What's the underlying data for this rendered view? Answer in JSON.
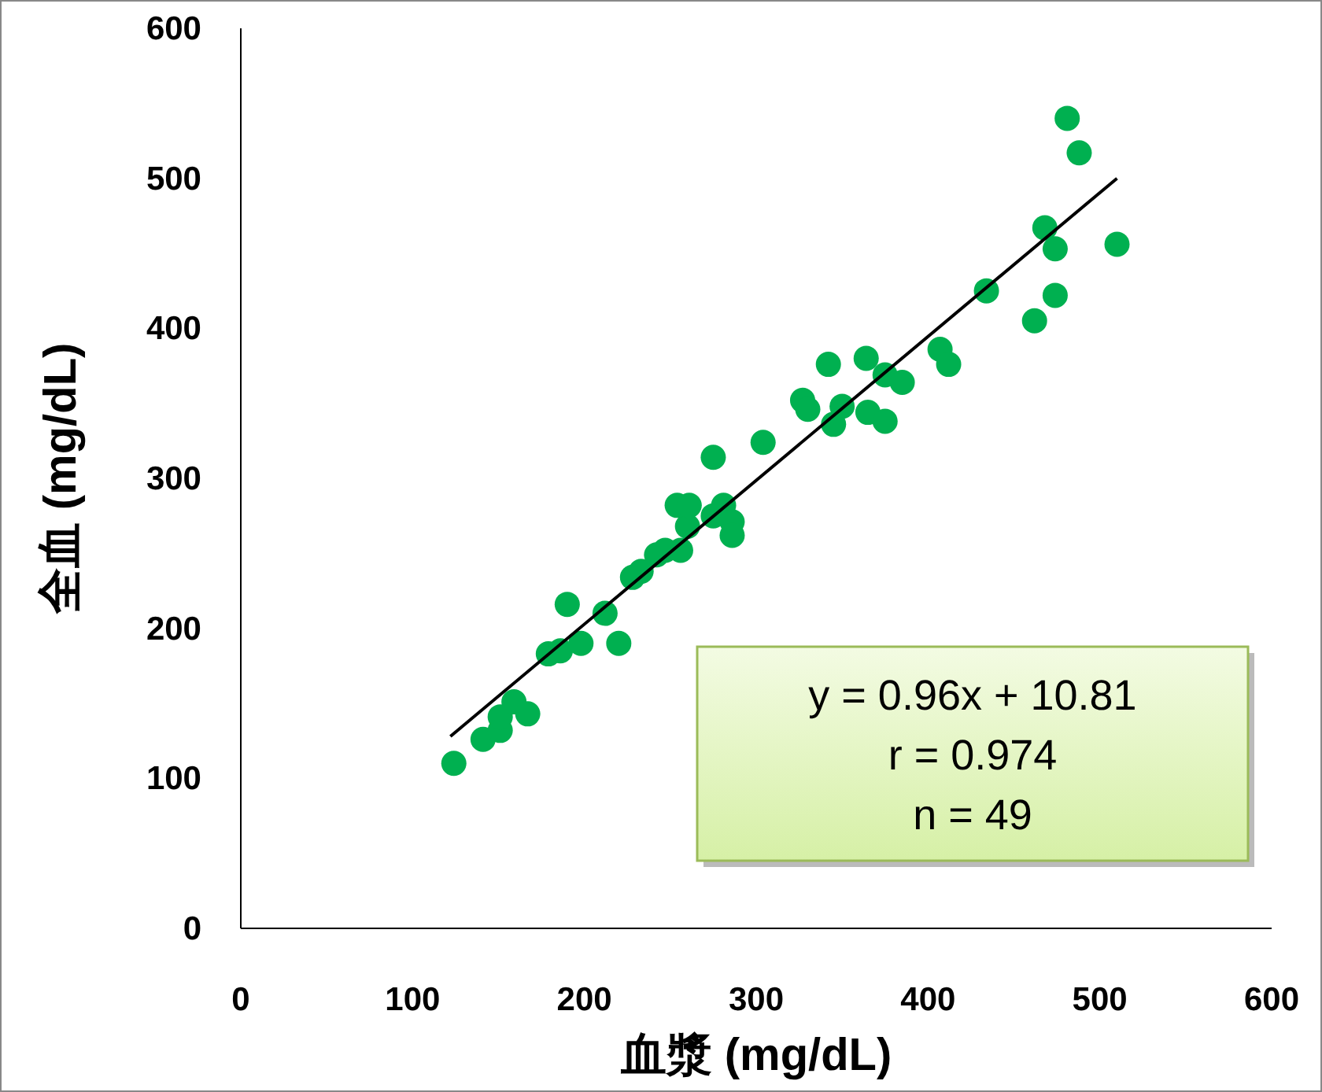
{
  "chart_data": {
    "type": "scatter",
    "xlabel": "血漿 (mg/dL)",
    "ylabel": "全血 (mg/dL)",
    "xlim": [
      0,
      600
    ],
    "ylim": [
      0,
      600
    ],
    "xticks": [
      0,
      100,
      200,
      300,
      400,
      500,
      600
    ],
    "yticks": [
      0,
      100,
      200,
      300,
      400,
      500,
      600
    ],
    "grid": false,
    "series": [
      {
        "type": "scatter",
        "marker": "circle",
        "color": "#00b050",
        "x": [
          124,
          141,
          151,
          151,
          159,
          167,
          179,
          186,
          190,
          198,
          212,
          220,
          228,
          233,
          242,
          247,
          256,
          260,
          254,
          261,
          275,
          281,
          286,
          286,
          275,
          304,
          327,
          330,
          342,
          350,
          345,
          364,
          365,
          375,
          385,
          375,
          407,
          412,
          434,
          481,
          488,
          468,
          474,
          510,
          474,
          462
        ],
        "values": [
          110,
          126,
          132,
          141,
          151,
          143,
          183,
          185,
          216,
          190,
          210,
          190,
          234,
          238,
          249,
          252,
          252,
          268,
          282,
          282,
          275,
          282,
          271,
          262,
          314,
          324,
          352,
          346,
          376,
          348,
          336,
          380,
          344,
          369,
          364,
          338,
          386,
          376,
          425,
          540,
          517,
          467,
          453,
          456,
          422,
          405
        ]
      },
      {
        "type": "line",
        "color": "#000000",
        "x": [
          122,
          510
        ],
        "values": [
          128,
          500
        ]
      }
    ],
    "annotations": [
      "y = 0.96x + 10.81",
      "r = 0.974",
      "n = 49"
    ]
  }
}
